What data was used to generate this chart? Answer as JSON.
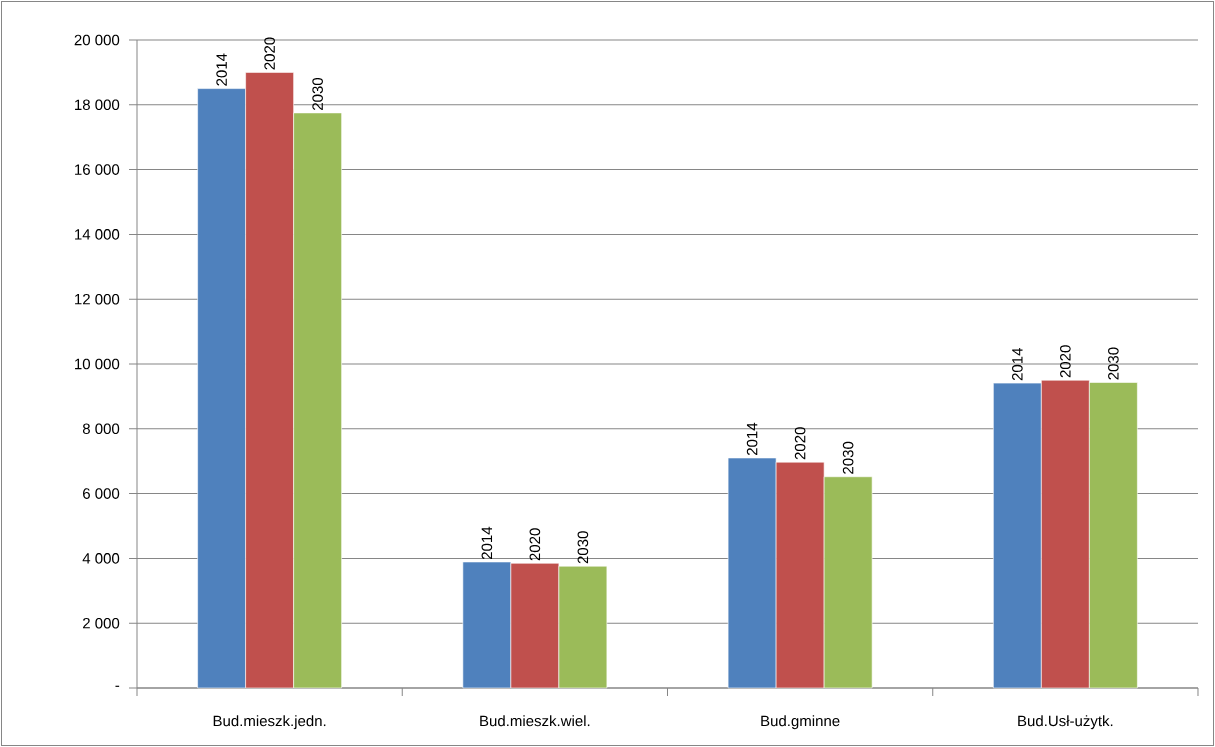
{
  "chart_data": {
    "type": "bar",
    "categories": [
      "Bud.mieszk.jedn.",
      "Bud.mieszk.wiel.",
      "Bud.gminne",
      "Bud.Usł-użytk."
    ],
    "series": [
      {
        "name": "2014",
        "color": "#4f81bd",
        "values": [
          18500,
          3890,
          7100,
          9410
        ]
      },
      {
        "name": "2020",
        "color": "#c0504d",
        "values": [
          19000,
          3850,
          6970,
          9500
        ]
      },
      {
        "name": "2030",
        "color": "#9bbb59",
        "values": [
          17750,
          3760,
          6520,
          9430
        ]
      }
    ],
    "ylim": [
      0,
      20000
    ],
    "yticks": [
      {
        "value": 0,
        "label": "-"
      },
      {
        "value": 2000,
        "label": "2 000"
      },
      {
        "value": 4000,
        "label": "4 000"
      },
      {
        "value": 6000,
        "label": "6 000"
      },
      {
        "value": 8000,
        "label": "8 000"
      },
      {
        "value": 10000,
        "label": "10 000"
      },
      {
        "value": 12000,
        "label": "12 000"
      },
      {
        "value": 14000,
        "label": "14 000"
      },
      {
        "value": 16000,
        "label": "16 000"
      },
      {
        "value": 18000,
        "label": "18 000"
      },
      {
        "value": 20000,
        "label": "20 000"
      }
    ],
    "grid": "y"
  }
}
